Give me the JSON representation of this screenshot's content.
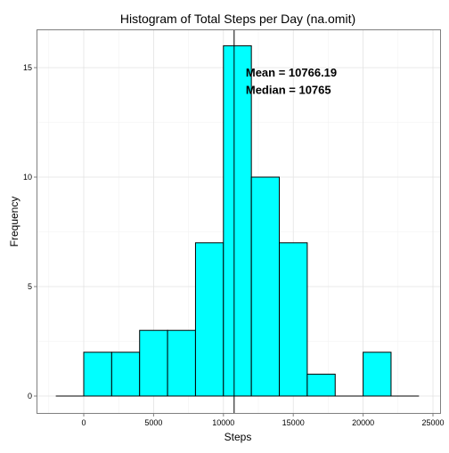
{
  "chart_data": {
    "type": "bar",
    "title": "Histogram of Total Steps per Day (na.omit)",
    "xlabel": "Steps",
    "ylabel": "Frequency",
    "xlim": [
      -2000,
      24000
    ],
    "ylim": [
      0,
      16
    ],
    "grid": true,
    "x_ticks": [
      0,
      5000,
      10000,
      15000,
      20000,
      25000
    ],
    "x_tick_labels": [
      "0",
      "5000",
      "10000",
      "15000",
      "20000",
      "25000"
    ],
    "y_ticks": [
      0,
      5,
      10,
      15
    ],
    "y_tick_labels": [
      "0",
      "5",
      "10",
      "15"
    ],
    "bin_width": 2000,
    "bins": [
      {
        "start": 0,
        "end": 2000,
        "count": 2
      },
      {
        "start": 2000,
        "end": 4000,
        "count": 2
      },
      {
        "start": 4000,
        "end": 6000,
        "count": 3
      },
      {
        "start": 6000,
        "end": 8000,
        "count": 3
      },
      {
        "start": 8000,
        "end": 10000,
        "count": 7
      },
      {
        "start": 10000,
        "end": 12000,
        "count": 16
      },
      {
        "start": 12000,
        "end": 14000,
        "count": 10
      },
      {
        "start": 14000,
        "end": 16000,
        "count": 7
      },
      {
        "start": 16000,
        "end": 18000,
        "count": 1
      },
      {
        "start": 18000,
        "end": 20000,
        "count": 0
      },
      {
        "start": 20000,
        "end": 22000,
        "count": 2
      }
    ],
    "bar_fill": "#00ffff",
    "bar_stroke": "#000000",
    "mean_line_x": 10766.19,
    "annotations": [
      {
        "text": "Mean =  10766.19",
        "x": 11600,
        "y": 14.8
      },
      {
        "text": "Median =  10765",
        "x": 11600,
        "y": 14.0
      }
    ]
  }
}
